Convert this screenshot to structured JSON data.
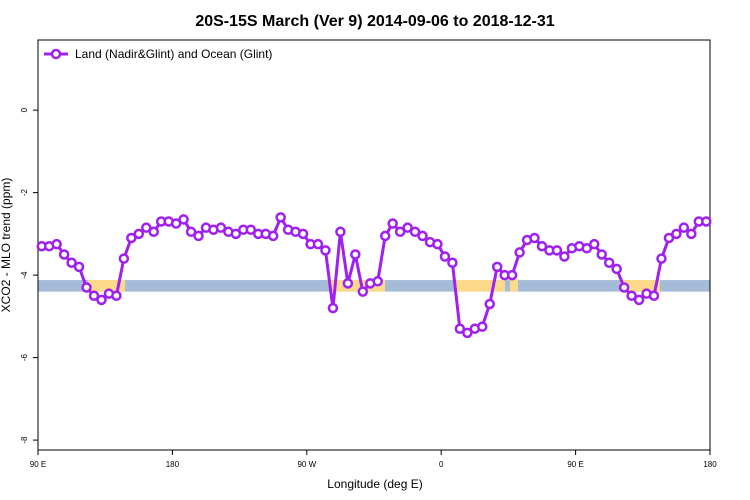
{
  "chart_data": {
    "type": "line",
    "title": "20S-15S March (Ver 9)   2014-09-06 to 2018-12-31",
    "xlabel": "Longitude (deg E)",
    "ylabel": "XCO2 - MLO trend (ppm)",
    "xlim": [
      90,
      540
    ],
    "ylim": [
      -8.24,
      1.7
    ],
    "xticks": [
      {
        "value": 90,
        "label": "90 E"
      },
      {
        "value": 180,
        "label": "180"
      },
      {
        "value": 270,
        "label": "90 W"
      },
      {
        "value": 360,
        "label": "0"
      },
      {
        "value": 450,
        "label": "90 E"
      },
      {
        "value": 540,
        "label": "180"
      }
    ],
    "yticks": [
      0,
      -2,
      -4,
      -6,
      -8
    ],
    "legend": "top-left",
    "x": [
      92.5,
      97.5,
      102.5,
      107.5,
      112.5,
      117.5,
      122.5,
      127.5,
      132.5,
      137.5,
      142.5,
      147.5,
      152.5,
      157.5,
      162.5,
      167.5,
      172.5,
      177.5,
      182.5,
      187.5,
      192.5,
      197.5,
      202.5,
      207.5,
      212.5,
      217.5,
      222.5,
      227.5,
      232.5,
      237.5,
      242.5,
      247.5,
      252.5,
      257.5,
      262.5,
      267.5,
      272.5,
      277.5,
      282.5,
      287.5,
      292.5,
      297.5,
      302.5,
      307.5,
      312.5,
      317.5,
      322.5,
      327.5,
      332.5,
      337.5,
      342.5,
      347.5,
      352.5,
      357.5,
      362.5,
      367.5,
      372.5,
      377.5,
      382.5,
      387.5,
      392.5,
      397.5,
      402.5,
      407.5,
      412.5,
      417.5,
      422.5,
      427.5,
      432.5,
      437.5,
      442.5,
      447.5,
      452.5,
      457.5,
      462.5,
      467.5,
      472.5,
      477.5,
      482.5,
      487.5,
      492.5,
      497.5,
      502.5,
      507.5,
      512.5,
      517.5,
      522.5,
      527.5,
      532.5,
      537.5
    ],
    "series": [
      {
        "name": "Land (Nadir&Glint) and Ocean (Glint)",
        "color": "#a020f0",
        "values": [
          -3.3,
          -3.3,
          -3.25,
          -3.5,
          -3.7,
          -3.8,
          -4.3,
          -4.5,
          -4.6,
          -4.45,
          -4.5,
          -3.6,
          -3.1,
          -3.0,
          -2.85,
          -2.95,
          -2.7,
          -2.7,
          -2.75,
          -2.65,
          -2.95,
          -3.05,
          -2.85,
          -2.9,
          -2.85,
          -2.95,
          -3.0,
          -2.9,
          -2.9,
          -3.0,
          -3.0,
          -3.05,
          -2.6,
          -2.9,
          -2.95,
          -3.0,
          -3.25,
          -3.25,
          -3.4,
          -4.8,
          -2.95,
          -4.2,
          -3.5,
          -4.4,
          -4.2,
          -4.15,
          -3.05,
          -2.75,
          -2.95,
          -2.85,
          -2.95,
          -3.05,
          -3.2,
          -3.25,
          -3.55,
          -3.7,
          -5.3,
          -5.4,
          -5.3,
          -5.25,
          -4.7,
          -3.8,
          -4.0,
          -4.0,
          -3.45,
          -3.15,
          -3.1,
          -3.3,
          -3.4,
          -3.4,
          -3.55,
          -3.35,
          -3.3,
          -3.35,
          -3.25,
          -3.5,
          -3.7,
          -3.85,
          -4.3,
          -4.5,
          -4.6,
          -4.45,
          -4.5,
          -3.6,
          -3.1,
          -3.0,
          -2.85,
          -3.0,
          -2.7,
          -2.7
        ]
      }
    ],
    "band": {
      "ylim": [
        -4.4,
        -4.12
      ],
      "color": "#a5bcd9",
      "segments": [
        {
          "from": 123.5,
          "to": 148.3,
          "color": "#fdd98a"
        },
        {
          "from": 285.5,
          "to": 322.4,
          "color": "#fdd98a"
        },
        {
          "from": 369.3,
          "to": 402.7,
          "color": "#fdd98a"
        },
        {
          "from": 406,
          "to": 411.4,
          "color": "#fdd98a"
        },
        {
          "from": 479.7,
          "to": 506.5,
          "color": "#fdd98a"
        }
      ]
    }
  }
}
